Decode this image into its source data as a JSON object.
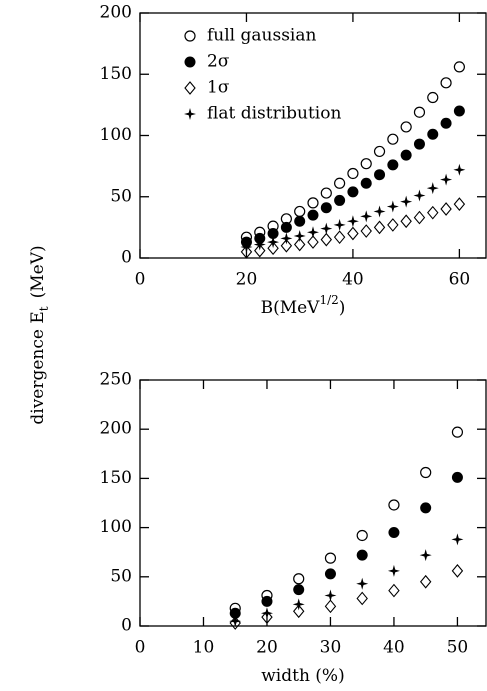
{
  "ylabel": {
    "text": "divergence E",
    "sub": "t",
    "unit": "(MeV)"
  },
  "chart_data": [
    {
      "type": "scatter",
      "xlabel": {
        "text": "B(MeV",
        "sup": "1/2",
        "end": ")"
      },
      "xlim": [
        0,
        65
      ],
      "xticks": [
        0,
        20,
        40,
        60
      ],
      "ylim": [
        0,
        200
      ],
      "yticks": [
        0,
        50,
        100,
        150,
        200
      ],
      "x": [
        20,
        22.5,
        25,
        27.5,
        30,
        32.5,
        35,
        37.5,
        40,
        42.5,
        45,
        47.5,
        50,
        52.5,
        55,
        57.5,
        60
      ],
      "legend": true,
      "series": [
        {
          "name": "full gaussian",
          "color": "#000000",
          "marker": "open-circle",
          "values": [
            17,
            21,
            26,
            32,
            38,
            45,
            53,
            61,
            69,
            77,
            87,
            97,
            107,
            119,
            131,
            143,
            156
          ]
        },
        {
          "name": "2σ",
          "color": "#000000",
          "marker": "filled-circle",
          "values": [
            13,
            16,
            20,
            25,
            30,
            35,
            41,
            47,
            54,
            61,
            68,
            76,
            84,
            93,
            101,
            110,
            120
          ]
        },
        {
          "name": "1σ",
          "color": "#000000",
          "marker": "diamond",
          "values": [
            5,
            6,
            8,
            10,
            11,
            13,
            15,
            17,
            20,
            22,
            25,
            27,
            30,
            33,
            37,
            40,
            44
          ]
        },
        {
          "name": "flat distribution",
          "color": "#000000",
          "marker": "star",
          "values": [
            9,
            11,
            13,
            16,
            18,
            21,
            24,
            27,
            30,
            34,
            38,
            42,
            46,
            51,
            57,
            64,
            72
          ]
        }
      ]
    },
    {
      "type": "scatter",
      "xlabel": {
        "text": "width (%)"
      },
      "xlim": [
        0,
        54.5
      ],
      "xticks": [
        0,
        10,
        20,
        30,
        40,
        50
      ],
      "ylim": [
        0,
        250
      ],
      "yticks": [
        0,
        50,
        100,
        150,
        200,
        250
      ],
      "x": [
        15,
        20,
        25,
        30,
        35,
        40,
        45,
        50
      ],
      "legend": false,
      "series": [
        {
          "name": "full gaussian",
          "color": "#000000",
          "marker": "open-circle",
          "values": [
            18,
            31,
            48,
            69,
            92,
            123,
            156,
            197
          ]
        },
        {
          "name": "2σ",
          "color": "#000000",
          "marker": "filled-circle",
          "values": [
            13,
            25,
            37,
            53,
            72,
            95,
            120,
            151
          ]
        },
        {
          "name": "1σ",
          "color": "#000000",
          "marker": "diamond",
          "values": [
            3,
            9,
            15,
            20,
            28,
            36,
            45,
            56
          ]
        },
        {
          "name": "flat distribution",
          "color": "#000000",
          "marker": "star",
          "values": [
            5,
            13,
            22,
            31,
            43,
            56,
            72,
            88
          ]
        }
      ]
    }
  ]
}
